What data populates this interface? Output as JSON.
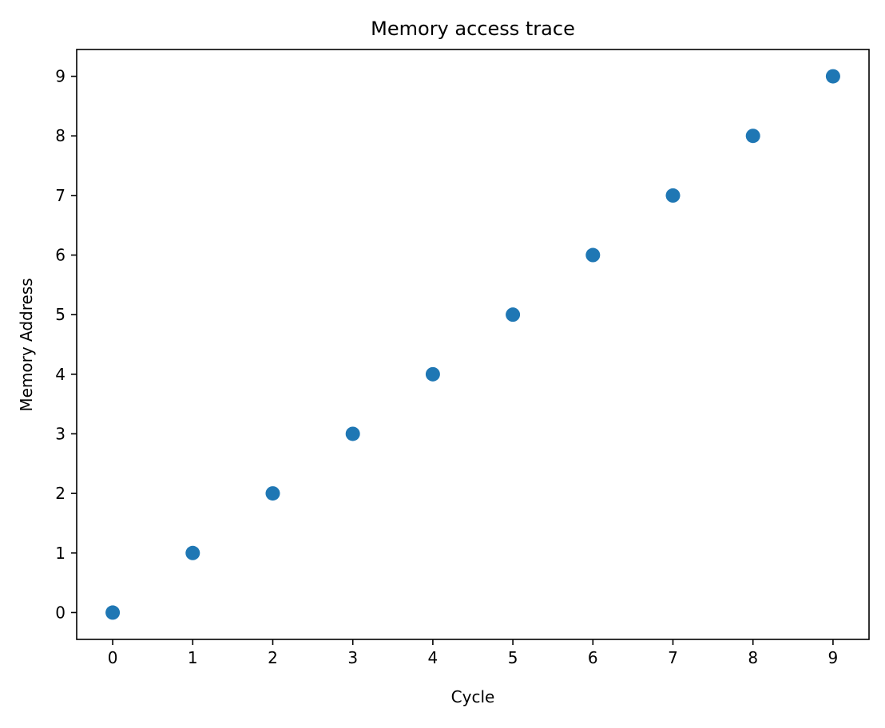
{
  "chart_data": {
    "type": "scatter",
    "title": "Memory access trace",
    "xlabel": "Cycle",
    "ylabel": "Memory Address",
    "x": [
      0,
      1,
      2,
      3,
      4,
      5,
      6,
      7,
      8,
      9
    ],
    "y": [
      0,
      1,
      2,
      3,
      4,
      5,
      6,
      7,
      8,
      9
    ],
    "xlim": [
      -0.45,
      9.45
    ],
    "ylim": [
      -0.45,
      9.45
    ],
    "xticks": [
      "0",
      "1",
      "2",
      "3",
      "4",
      "5",
      "6",
      "7",
      "8",
      "9"
    ],
    "yticks": [
      "0",
      "1",
      "2",
      "3",
      "4",
      "5",
      "6",
      "7",
      "8",
      "9"
    ],
    "grid": false,
    "marker_color": "#1f77b4"
  }
}
